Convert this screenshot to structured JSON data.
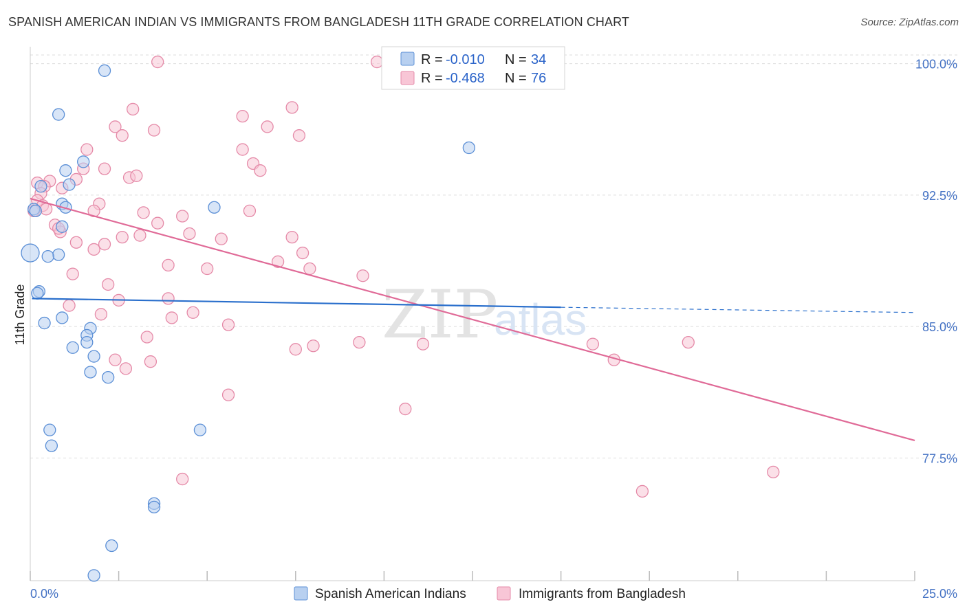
{
  "title": "SPANISH AMERICAN INDIAN VS IMMIGRANTS FROM BANGLADESH 11TH GRADE CORRELATION CHART",
  "source": "Source: ZipAtlas.com",
  "colors": {
    "blue_fill": "#b8d0f0",
    "blue_stroke": "#5b8fd6",
    "blue_line": "#2a6fcc",
    "pink_fill": "#f8c6d6",
    "pink_stroke": "#e58aa8",
    "pink_line": "#e06a97",
    "axis_text": "#4472c4",
    "grid": "#dddddd"
  },
  "legend": {
    "r_label": "R =",
    "n_label": "N =",
    "rows": [
      {
        "r": "-0.010",
        "n": "34"
      },
      {
        "r": "-0.468",
        "n": "76"
      }
    ]
  },
  "watermark": {
    "zip": "ZIP",
    "atlas": "atlas"
  },
  "chart_data": {
    "type": "scatter",
    "title": "SPANISH AMERICAN INDIAN VS IMMIGRANTS FROM BANGLADESH 11TH GRADE CORRELATION CHART",
    "xlabel": "",
    "ylabel": "11th Grade",
    "xlim": [
      0,
      25
    ],
    "ylim": [
      70.5,
      101.2
    ],
    "x_tick_labels": [
      "0.0%",
      "25.0%"
    ],
    "y_ticks": [
      77.5,
      85.0,
      92.5,
      100.0
    ],
    "y_tick_labels": [
      "77.5%",
      "85.0%",
      "92.5%",
      "100.0%"
    ],
    "grid": true,
    "legend_position": "top-center",
    "series": [
      {
        "name": "Spanish American Indians",
        "r": -0.01,
        "n": 34,
        "trend": {
          "x0": 0.05,
          "y0": 86.6,
          "x1": 15.0,
          "y1": 86.1,
          "dash_to_x": 25.0,
          "dash_to_y": 85.8
        },
        "points": [
          [
            2.1,
            99.6
          ],
          [
            0.8,
            97.1
          ],
          [
            1.5,
            94.4
          ],
          [
            1.0,
            93.9
          ],
          [
            0.3,
            93.0
          ],
          [
            1.1,
            93.1
          ],
          [
            0.9,
            92.0
          ],
          [
            1.0,
            91.8
          ],
          [
            0.1,
            91.7
          ],
          [
            0.9,
            90.7
          ],
          [
            0.8,
            89.1
          ],
          [
            0.0,
            89.2
          ],
          [
            0.5,
            89.0
          ],
          [
            0.25,
            87.0
          ],
          [
            0.4,
            85.2
          ],
          [
            0.9,
            85.5
          ],
          [
            1.7,
            84.9
          ],
          [
            1.6,
            84.5
          ],
          [
            1.6,
            84.1
          ],
          [
            1.2,
            83.8
          ],
          [
            1.8,
            83.3
          ],
          [
            1.7,
            82.4
          ],
          [
            2.2,
            82.1
          ],
          [
            0.55,
            79.1
          ],
          [
            0.6,
            78.2
          ],
          [
            4.8,
            79.1
          ],
          [
            3.5,
            74.9
          ],
          [
            3.5,
            74.7
          ],
          [
            2.3,
            72.5
          ],
          [
            1.8,
            70.8
          ],
          [
            12.4,
            95.2
          ],
          [
            5.2,
            91.8
          ],
          [
            0.2,
            86.9
          ],
          [
            0.15,
            91.6
          ]
        ]
      },
      {
        "name": "Immigrants from Bangladesh",
        "r": -0.468,
        "n": 76,
        "trend": {
          "x0": 0.0,
          "y0": 92.3,
          "x1": 25.0,
          "y1": 78.5
        },
        "points": [
          [
            3.6,
            100.1
          ],
          [
            9.8,
            100.1
          ],
          [
            2.9,
            97.4
          ],
          [
            7.4,
            97.5
          ],
          [
            6.0,
            97.0
          ],
          [
            2.4,
            96.4
          ],
          [
            3.5,
            96.2
          ],
          [
            6.7,
            96.4
          ],
          [
            2.6,
            95.9
          ],
          [
            7.6,
            95.9
          ],
          [
            1.6,
            95.1
          ],
          [
            6.0,
            95.1
          ],
          [
            6.3,
            94.3
          ],
          [
            1.5,
            94.0
          ],
          [
            2.1,
            94.0
          ],
          [
            6.5,
            93.9
          ],
          [
            1.3,
            93.4
          ],
          [
            2.8,
            93.5
          ],
          [
            3.0,
            93.6
          ],
          [
            0.2,
            93.2
          ],
          [
            0.55,
            93.3
          ],
          [
            0.9,
            92.9
          ],
          [
            0.4,
            93.0
          ],
          [
            0.3,
            92.6
          ],
          [
            0.2,
            92.2
          ],
          [
            0.35,
            91.9
          ],
          [
            1.95,
            92.0
          ],
          [
            0.45,
            91.7
          ],
          [
            0.1,
            91.6
          ],
          [
            1.8,
            91.6
          ],
          [
            6.2,
            91.6
          ],
          [
            3.2,
            91.5
          ],
          [
            4.3,
            91.3
          ],
          [
            0.7,
            90.8
          ],
          [
            3.6,
            90.9
          ],
          [
            0.85,
            90.4
          ],
          [
            0.8,
            90.6
          ],
          [
            4.5,
            90.3
          ],
          [
            3.1,
            90.2
          ],
          [
            5.4,
            90.0
          ],
          [
            7.4,
            90.1
          ],
          [
            1.3,
            89.8
          ],
          [
            2.1,
            89.7
          ],
          [
            1.8,
            89.4
          ],
          [
            7.7,
            89.2
          ],
          [
            7.0,
            88.7
          ],
          [
            3.9,
            88.5
          ],
          [
            5.0,
            88.3
          ],
          [
            7.9,
            88.3
          ],
          [
            1.2,
            88.0
          ],
          [
            9.4,
            87.9
          ],
          [
            2.2,
            87.4
          ],
          [
            2.5,
            86.5
          ],
          [
            3.9,
            86.6
          ],
          [
            1.1,
            86.2
          ],
          [
            4.6,
            85.8
          ],
          [
            2.0,
            85.7
          ],
          [
            4.0,
            85.5
          ],
          [
            5.6,
            85.1
          ],
          [
            3.3,
            84.4
          ],
          [
            7.5,
            83.7
          ],
          [
            8.0,
            83.9
          ],
          [
            9.3,
            84.1
          ],
          [
            11.1,
            84.0
          ],
          [
            15.9,
            84.0
          ],
          [
            18.6,
            84.1
          ],
          [
            2.4,
            83.1
          ],
          [
            3.4,
            83.0
          ],
          [
            2.7,
            82.6
          ],
          [
            16.5,
            83.1
          ],
          [
            5.6,
            81.1
          ],
          [
            10.6,
            80.3
          ],
          [
            4.3,
            76.3
          ],
          [
            21.0,
            76.7
          ],
          [
            17.3,
            75.6
          ],
          [
            2.6,
            90.1
          ]
        ]
      }
    ]
  }
}
